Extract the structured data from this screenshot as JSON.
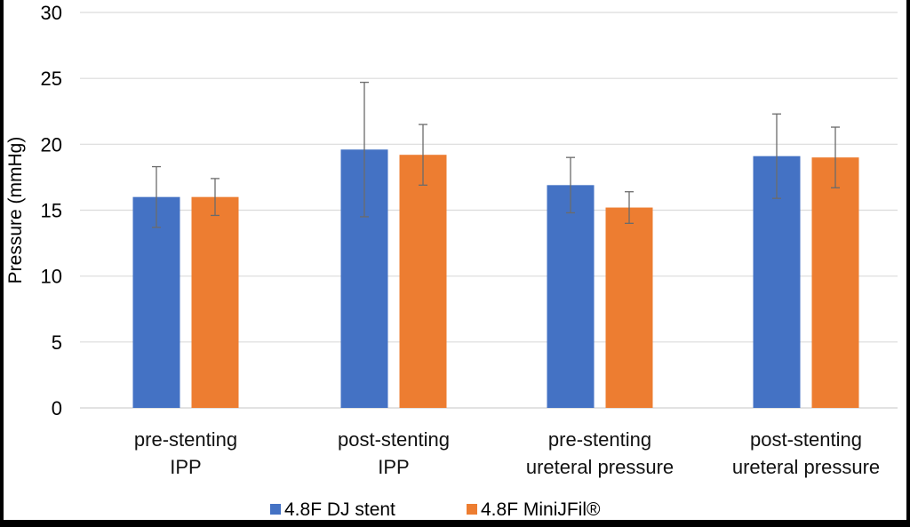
{
  "chart_data": {
    "type": "bar",
    "title": "",
    "xlabel": "",
    "ylabel": "Pressure (mmHg)",
    "ylim": [
      0,
      30
    ],
    "yticks": [
      "0",
      "5",
      "10",
      "15",
      "20",
      "25",
      "30"
    ],
    "grid": true,
    "legend_position": "bottom",
    "categories": [
      [
        "pre-stenting",
        "IPP"
      ],
      [
        "post-stenting",
        "IPP"
      ],
      [
        "pre-stenting",
        "ureteral pressure"
      ],
      [
        "post-stenting",
        "ureteral pressure"
      ]
    ],
    "series": [
      {
        "name": "4.8F DJ stent",
        "color": "#4472C4",
        "values": [
          16.0,
          19.6,
          16.9,
          19.1
        ],
        "errors": [
          2.3,
          5.1,
          2.1,
          3.2
        ]
      },
      {
        "name": "4.8F MiniJFil®",
        "color": "#ED7D31",
        "values": [
          16.0,
          19.2,
          15.2,
          19.0
        ],
        "errors": [
          1.4,
          2.3,
          1.2,
          2.3
        ]
      }
    ]
  }
}
